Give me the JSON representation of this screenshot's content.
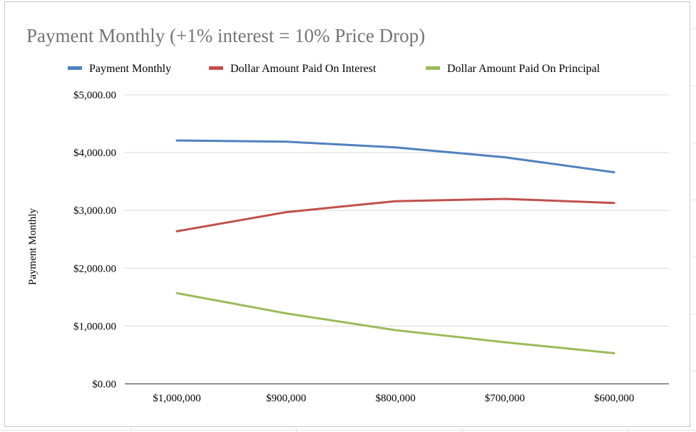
{
  "chart_data": {
    "type": "line",
    "title": "Payment Monthly (+1% interest = 10% Price Drop)",
    "ylabel": "Payment Monthly",
    "xlabel": "",
    "categories": [
      "$1,000,000",
      "$900,000",
      "$800,000",
      "$700,000",
      "$600,000"
    ],
    "y_ticks": [
      "$0.00",
      "$1,000.00",
      "$2,000.00",
      "$3,000.00",
      "$4,000.00",
      "$5,000.00"
    ],
    "ylim": [
      0,
      5000
    ],
    "grid": true,
    "legend_position": "top",
    "series": [
      {
        "name": "Payment Monthly",
        "color": "#4f81bd",
        "values": [
          4210,
          4190,
          4090,
          3920,
          3660
        ]
      },
      {
        "name": "Dollar Amount Paid On Interest",
        "color": "#c0504d",
        "values": [
          2640,
          2970,
          3160,
          3200,
          3130
        ]
      },
      {
        "name": "Dollar Amount Paid On Principal",
        "color": "#9bbb59",
        "values": [
          1570,
          1220,
          930,
          720,
          530
        ]
      }
    ]
  }
}
